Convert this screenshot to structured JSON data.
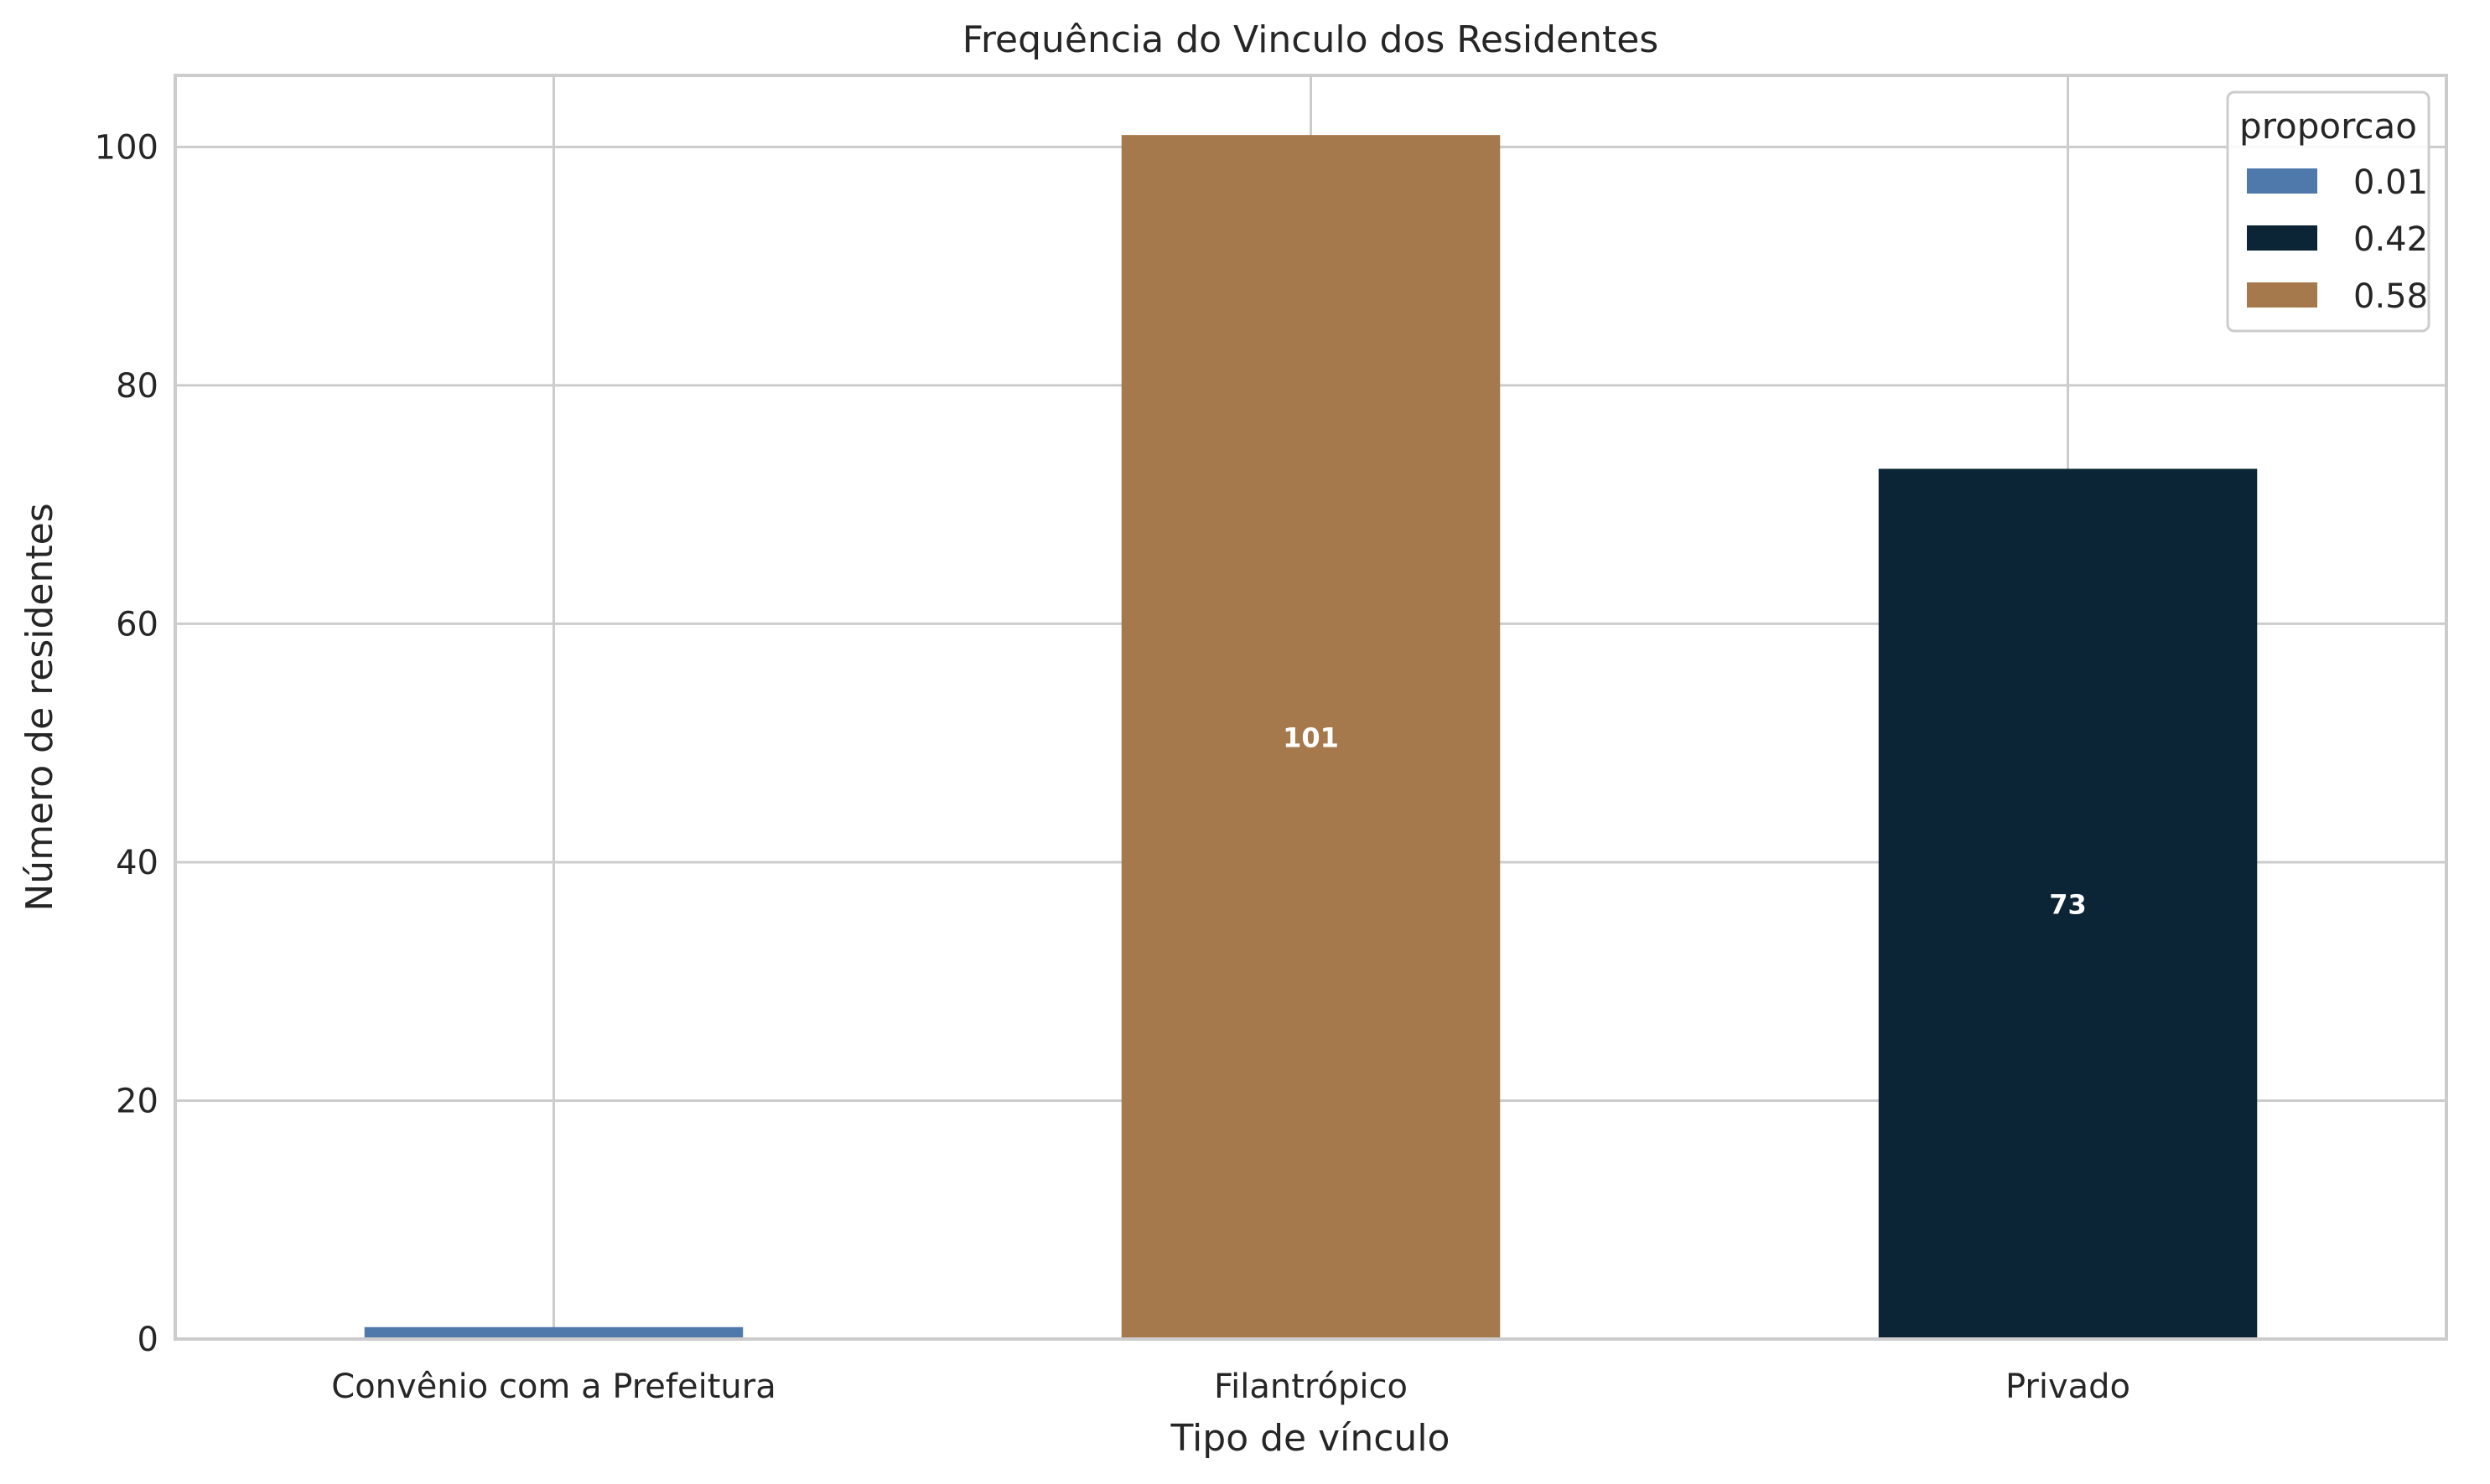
{
  "chart_data": {
    "type": "bar",
    "title": "Frequência do Vinculo dos Residentes",
    "xlabel": "Tipo de vínculo",
    "ylabel": "Número de residentes",
    "categories": [
      "Convênio com a Prefeitura",
      "Filantrópico",
      "Privado"
    ],
    "values": [
      1,
      101,
      73
    ],
    "bar_colors": [
      "#4f79ab",
      "#a6794d",
      "#0b2436"
    ],
    "bar_labels": [
      "",
      "101",
      "73"
    ],
    "ylim": [
      0,
      106
    ],
    "yticks": [
      0,
      20,
      40,
      60,
      80,
      100
    ],
    "grid": true,
    "legend": {
      "title": "proporcao",
      "placement": "top-right",
      "entries": [
        {
          "label": "0.01",
          "color": "#4f79ab"
        },
        {
          "label": "0.42",
          "color": "#0b2436"
        },
        {
          "label": "0.58",
          "color": "#a6794d"
        }
      ]
    }
  }
}
